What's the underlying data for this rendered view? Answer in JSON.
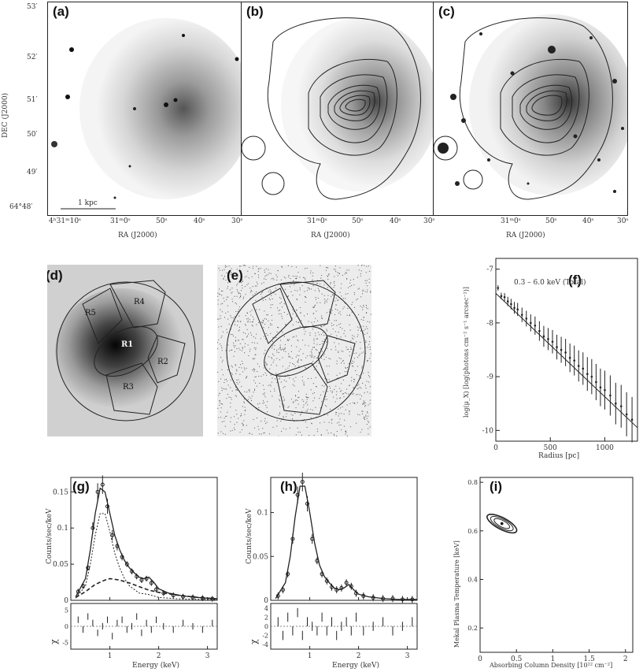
{
  "panels": {
    "a": {
      "label": "(a)",
      "scalebar": "1 kpc"
    },
    "b": {
      "label": "(b)"
    },
    "c": {
      "label": "(c)"
    },
    "d": {
      "label": "(d)",
      "regions": [
        "R1",
        "R2",
        "R3",
        "R4",
        "R5"
      ]
    },
    "e": {
      "label": "(e)"
    },
    "f": {
      "label": "(f)",
      "annotation": "0.3 – 6.0 keV (Total)"
    },
    "g": {
      "label": "(g)"
    },
    "h": {
      "label": "(h)"
    },
    "i": {
      "label": "(i)"
    }
  },
  "top_axes": {
    "dec_label": "DEC (J2000)",
    "ra_label": "RA (J2000)",
    "dec_ticks": [
      "53′",
      "52′",
      "51′",
      "50′",
      "49′",
      "64°48′"
    ],
    "ra_ticks_a": [
      "4ʰ31ᵐ10ˢ",
      "31ᵐ0ˢ",
      "50ˢ",
      "40ˢ",
      "30ˢ"
    ],
    "ra_ticks_bc": [
      "31ᵐ0ˢ",
      "50ˢ",
      "40ˢ",
      "30ˢ"
    ]
  },
  "chart_data": [
    {
      "type": "scatter",
      "panel": "f",
      "title": "0.3 – 6.0 keV (Total)",
      "xlabel": "Radius [pc]",
      "ylabel": "log(μ_X) [log(photons cm⁻² s⁻¹ arcsec⁻²)]",
      "xlim": [
        0,
        1300
      ],
      "ylim": [
        -10.2,
        -6.8
      ],
      "xticks": [
        "0",
        "500",
        "1000"
      ],
      "yticks": [
        "-7",
        "-8",
        "-9",
        "-10"
      ],
      "x": [
        20,
        50,
        80,
        110,
        140,
        170,
        200,
        240,
        280,
        320,
        360,
        400,
        440,
        480,
        520,
        560,
        600,
        640,
        680,
        720,
        760,
        800,
        840,
        880,
        920,
        960,
        1000,
        1050,
        1100,
        1150,
        1200,
        1250
      ],
      "y": [
        -7.35,
        -7.5,
        -7.52,
        -7.6,
        -7.65,
        -7.72,
        -7.75,
        -7.85,
        -7.92,
        -8.0,
        -8.05,
        -8.15,
        -8.25,
        -8.3,
        -8.35,
        -8.45,
        -8.5,
        -8.55,
        -8.65,
        -8.7,
        -8.8,
        -8.85,
        -8.95,
        -9.0,
        -9.1,
        -9.2,
        -9.25,
        -9.35,
        -9.5,
        -9.55,
        -9.7,
        -9.8
      ],
      "model_line": {
        "x": [
          0,
          1300
        ],
        "y": [
          -7.45,
          -9.95
        ]
      }
    },
    {
      "type": "line",
      "panel": "g",
      "xlabel": "Energy (keV)",
      "ylabel": "Counts/sec/keV",
      "residual_label": "χ",
      "xlim": [
        0.2,
        3.2
      ],
      "ylim": [
        0,
        0.17
      ],
      "xticks": [
        "1",
        "2",
        "3"
      ],
      "yticks": [
        "0",
        "0.05",
        "0.1",
        "0.15"
      ],
      "residual_yticks": [
        "5",
        "0",
        "-5"
      ],
      "residual_ylim": [
        -7,
        7
      ],
      "series": [
        {
          "name": "data",
          "x": [
            0.35,
            0.45,
            0.55,
            0.65,
            0.75,
            0.85,
            0.95,
            1.05,
            1.15,
            1.25,
            1.35,
            1.45,
            1.55,
            1.65,
            1.75,
            1.85,
            1.95,
            2.1,
            2.3,
            2.5,
            2.7,
            2.9,
            3.1
          ],
          "y": [
            0.012,
            0.02,
            0.045,
            0.1,
            0.15,
            0.16,
            0.13,
            0.09,
            0.075,
            0.06,
            0.05,
            0.04,
            0.033,
            0.028,
            0.03,
            0.024,
            0.015,
            0.01,
            0.007,
            0.005,
            0.004,
            0.003,
            0.002
          ]
        },
        {
          "name": "total model",
          "x": [
            0.3,
            0.5,
            0.6,
            0.7,
            0.8,
            0.9,
            1.0,
            1.1,
            1.2,
            1.3,
            1.4,
            1.5,
            1.6,
            1.7,
            1.8,
            1.9,
            2.0,
            2.2,
            2.5,
            2.8,
            3.2
          ],
          "y": [
            0.005,
            0.03,
            0.07,
            0.12,
            0.155,
            0.15,
            0.12,
            0.09,
            0.07,
            0.055,
            0.045,
            0.038,
            0.032,
            0.03,
            0.032,
            0.025,
            0.016,
            0.01,
            0.006,
            0.004,
            0.002
          ]
        },
        {
          "name": "thermal component",
          "x": [
            0.3,
            0.5,
            0.6,
            0.7,
            0.8,
            0.9,
            1.0,
            1.1,
            1.2,
            1.3,
            1.4,
            1.6,
            1.8,
            2.0,
            2.4,
            3.2
          ],
          "y": [
            0.003,
            0.02,
            0.05,
            0.09,
            0.12,
            0.12,
            0.095,
            0.065,
            0.045,
            0.03,
            0.02,
            0.01,
            0.008,
            0.004,
            0.002,
            0.001
          ]
        },
        {
          "name": "power-law component",
          "x": [
            0.3,
            0.5,
            0.7,
            0.9,
            1.0,
            1.2,
            1.4,
            1.6,
            1.8,
            2.0,
            2.4,
            2.8,
            3.2
          ],
          "y": [
            0.004,
            0.012,
            0.022,
            0.028,
            0.03,
            0.028,
            0.024,
            0.019,
            0.014,
            0.011,
            0.007,
            0.004,
            0.002
          ]
        }
      ],
      "residuals": [
        2,
        -1,
        3,
        1,
        -2,
        0,
        2,
        -3,
        1,
        2,
        -1,
        0,
        3,
        -2,
        1,
        -1,
        2,
        0,
        -1,
        1,
        0,
        -1,
        1
      ]
    },
    {
      "type": "line",
      "panel": "h",
      "xlabel": "Energy (keV)",
      "ylabel": "Counts/sec/keV",
      "residual_label": "χ",
      "xlim": [
        0.2,
        3.2
      ],
      "ylim": [
        0,
        0.14
      ],
      "xticks": [
        "1",
        "2",
        "3"
      ],
      "yticks": [
        "0",
        "0.05",
        "0.1"
      ],
      "residual_yticks": [
        "4",
        "2",
        "0",
        "-2",
        "-4"
      ],
      "residual_ylim": [
        -5,
        5
      ],
      "series": [
        {
          "name": "data",
          "x": [
            0.35,
            0.45,
            0.55,
            0.65,
            0.75,
            0.85,
            0.95,
            1.05,
            1.15,
            1.25,
            1.35,
            1.45,
            1.55,
            1.65,
            1.75,
            1.85,
            1.95,
            2.1,
            2.3,
            2.5,
            2.7,
            2.9,
            3.1
          ],
          "y": [
            0.005,
            0.012,
            0.03,
            0.07,
            0.12,
            0.135,
            0.11,
            0.07,
            0.045,
            0.03,
            0.022,
            0.015,
            0.012,
            0.014,
            0.02,
            0.016,
            0.008,
            0.005,
            0.003,
            0.002,
            0.002,
            0.001,
            0.001
          ]
        },
        {
          "name": "model",
          "x": [
            0.3,
            0.5,
            0.6,
            0.7,
            0.8,
            0.9,
            1.0,
            1.1,
            1.2,
            1.3,
            1.4,
            1.5,
            1.6,
            1.7,
            1.8,
            1.9,
            2.0,
            2.2,
            2.5,
            2.8,
            3.2
          ],
          "y": [
            0.002,
            0.02,
            0.05,
            0.095,
            0.13,
            0.13,
            0.1,
            0.065,
            0.04,
            0.027,
            0.02,
            0.014,
            0.012,
            0.014,
            0.018,
            0.012,
            0.007,
            0.004,
            0.002,
            0.001,
            0.001
          ]
        }
      ],
      "residuals": [
        1,
        -2,
        2,
        -1,
        3,
        -2,
        1,
        0,
        -1,
        2,
        -1,
        1,
        -2,
        0,
        1,
        -1,
        2,
        -1,
        0,
        1,
        -1,
        0,
        1
      ]
    },
    {
      "type": "scatter",
      "panel": "i",
      "xlabel": "Absorbing Column Density [10²² cm⁻²]",
      "ylabel": "Mekal Plasma Temperature [keV]",
      "xlim": [
        0,
        2.1
      ],
      "ylim": [
        0.1,
        0.82
      ],
      "xticks": [
        "0",
        "0.5",
        "1",
        "1.5",
        "2"
      ],
      "yticks": [
        "0.8",
        "0.6",
        "0.4",
        "0.2"
      ],
      "best_fit": {
        "x": 0.3,
        "y": 0.63
      },
      "contour_levels": 3
    }
  ]
}
